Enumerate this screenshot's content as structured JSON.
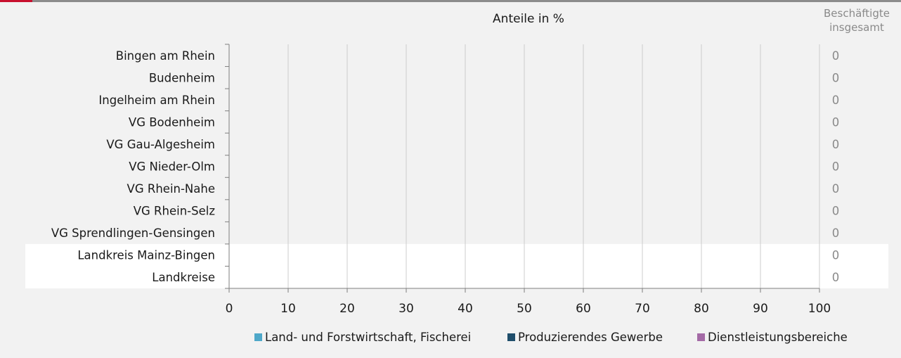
{
  "colors": {
    "accent": "#c8102e",
    "highlight_band": "#ffffff",
    "grid": "#cccccc",
    "axis": "#7f7f7f",
    "total_text": "#8a8a8a"
  },
  "chart_data": {
    "type": "bar",
    "orientation": "horizontal",
    "stacked": true,
    "title": "Anteile in %",
    "xlabel": "",
    "ylabel": "",
    "xlim": [
      0,
      100
    ],
    "x_ticks": [
      "0",
      "10",
      "20",
      "30",
      "40",
      "50",
      "60",
      "70",
      "80",
      "90",
      "100"
    ],
    "grid": true,
    "legend_position": "bottom",
    "categories": [
      "Bingen am Rhein",
      "Budenheim",
      "Ingelheim am Rhein",
      "VG Bodenheim",
      "VG Gau-Algesheim",
      "VG Nieder-Olm",
      "VG Rhein-Nahe",
      "VG Rhein-Selz",
      "VG Sprendlingen-Gensingen",
      "Landkreis Mainz-Bingen",
      "Landkreise"
    ],
    "highlighted_categories": [
      "Landkreis Mainz-Bingen",
      "Landkreise"
    ],
    "series": [
      {
        "name": "Land- und Forstwirtschaft, Fischerei",
        "color": "#4fa8c9",
        "values": [
          0,
          0,
          0,
          0,
          0,
          0,
          0,
          0,
          0,
          0,
          0
        ]
      },
      {
        "name": "Produzierendes Gewerbe",
        "color": "#1f4e6b",
        "values": [
          0,
          0,
          0,
          0,
          0,
          0,
          0,
          0,
          0,
          0,
          0
        ]
      },
      {
        "name": "Dienstleistungsbereiche",
        "color": "#a46aa6",
        "values": [
          0,
          0,
          0,
          0,
          0,
          0,
          0,
          0,
          0,
          0,
          0
        ]
      }
    ],
    "totals": {
      "header": [
        "Beschäftigte",
        "insgesamt"
      ],
      "values": [
        "0",
        "0",
        "0",
        "0",
        "0",
        "0",
        "0",
        "0",
        "0",
        "0",
        "0"
      ]
    }
  }
}
